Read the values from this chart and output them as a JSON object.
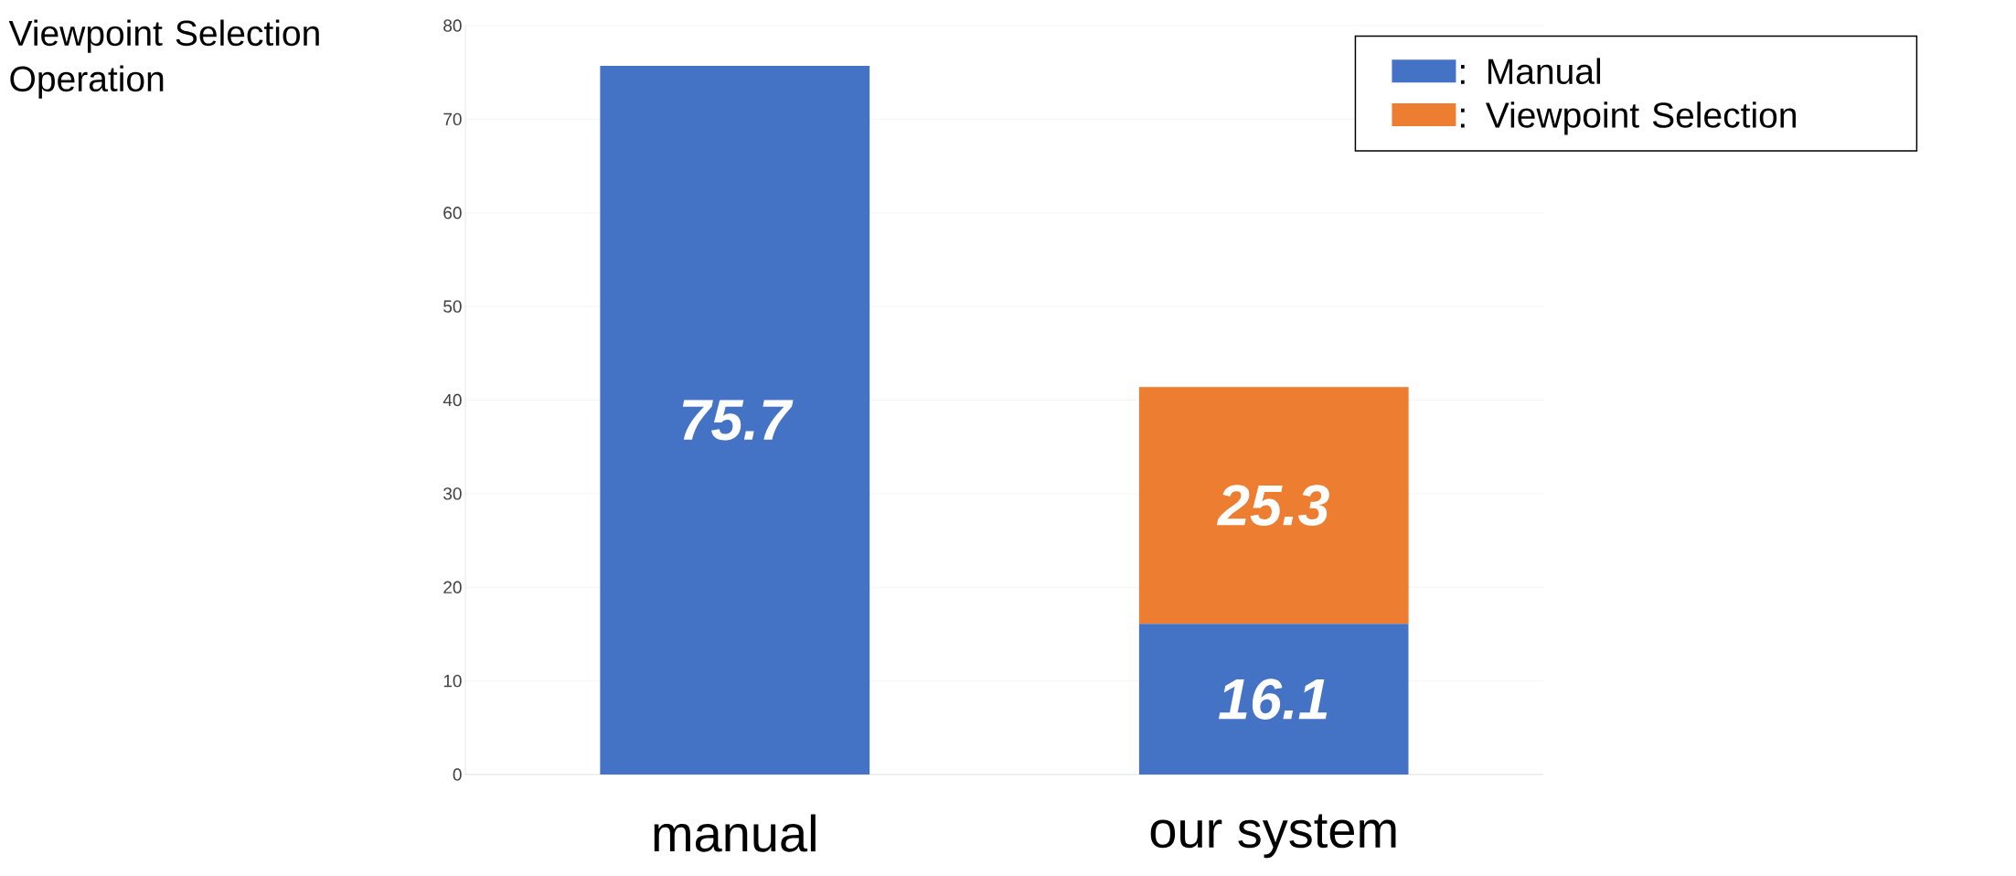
{
  "chart_data": {
    "type": "bar",
    "stacked": true,
    "ylabel": "Viewpoint Selection Operation",
    "categories": [
      "manual",
      "our system"
    ],
    "series": [
      {
        "name": ": Manual",
        "color": "#4472c4",
        "values": [
          75.7,
          16.1
        ],
        "value_labels": [
          "75.7",
          "16.1"
        ]
      },
      {
        "name": ": Viewpoint Selection",
        "color": "#ed7d31",
        "values": [
          null,
          25.3
        ],
        "value_labels": [
          null,
          "25.3"
        ]
      }
    ],
    "ylim": [
      0,
      80
    ],
    "yticks": [
      0,
      10,
      20,
      30,
      40,
      50,
      60,
      70,
      80
    ],
    "grid": "y",
    "legend": "top right"
  }
}
